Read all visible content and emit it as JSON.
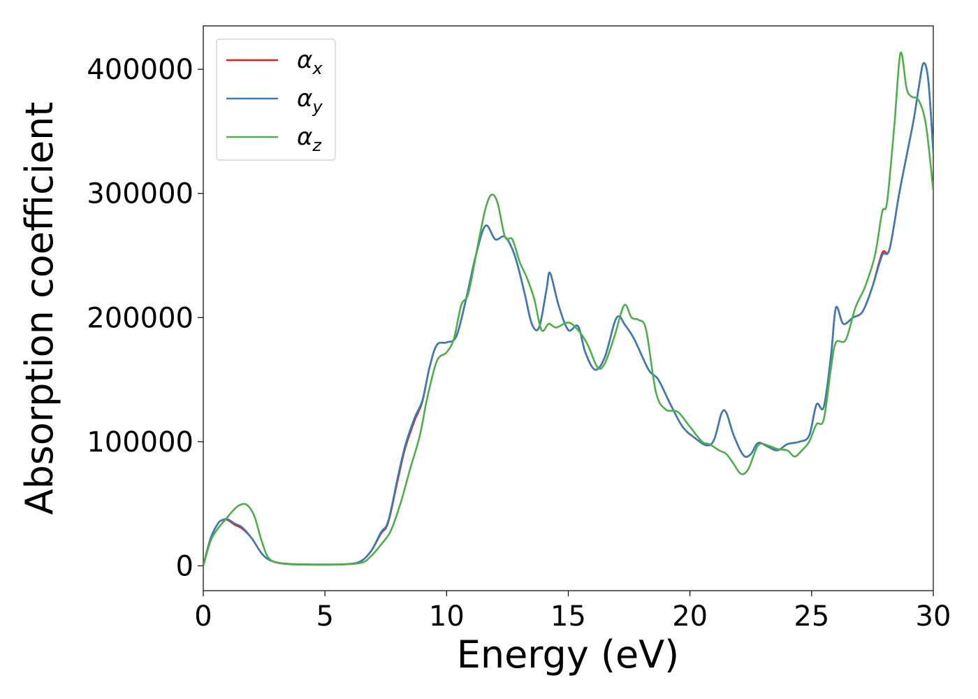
{
  "chart_data": {
    "type": "line",
    "title": "",
    "xlabel": "Energy (eV)",
    "ylabel": "Absorption coefficient",
    "xlim": [
      0,
      30
    ],
    "ylim": [
      -20000,
      435000
    ],
    "xticks": [
      0,
      5,
      10,
      15,
      20,
      25,
      30
    ],
    "yticks": [
      0,
      100000,
      200000,
      300000,
      400000
    ],
    "grid": false,
    "legend_position": "top-left",
    "series": [
      {
        "name": "α",
        "subscript": "x",
        "color": "#e41a1c",
        "points": [
          [
            0,
            0
          ],
          [
            0.3,
            22000
          ],
          [
            0.6,
            34000
          ],
          [
            0.8,
            37000
          ],
          [
            1.0,
            37000
          ],
          [
            1.3,
            33000
          ],
          [
            1.6,
            30000
          ],
          [
            2.0,
            22000
          ],
          [
            2.4,
            10000
          ],
          [
            2.8,
            4000
          ],
          [
            3.5,
            1500
          ],
          [
            5,
            1000
          ],
          [
            6,
            1500
          ],
          [
            6.5,
            4000
          ],
          [
            6.9,
            12000
          ],
          [
            7.3,
            26000
          ],
          [
            7.6,
            35000
          ],
          [
            8.0,
            70000
          ],
          [
            8.3,
            95000
          ],
          [
            8.7,
            118000
          ],
          [
            9.0,
            132000
          ],
          [
            9.3,
            160000
          ],
          [
            9.6,
            178000
          ],
          [
            10.0,
            180000
          ],
          [
            10.4,
            185000
          ],
          [
            10.8,
            215000
          ],
          [
            11.2,
            250000
          ],
          [
            11.6,
            274000
          ],
          [
            12.0,
            263000
          ],
          [
            12.4,
            265000
          ],
          [
            12.8,
            250000
          ],
          [
            13.2,
            220000
          ],
          [
            13.5,
            195000
          ],
          [
            13.8,
            192000
          ],
          [
            14.1,
            222000
          ],
          [
            14.25,
            236000
          ],
          [
            14.6,
            210000
          ],
          [
            15.0,
            190000
          ],
          [
            15.4,
            193000
          ],
          [
            15.7,
            172000
          ],
          [
            16.1,
            158000
          ],
          [
            16.5,
            168000
          ],
          [
            16.9,
            196000
          ],
          [
            17.1,
            201000
          ],
          [
            17.3,
            195000
          ],
          [
            17.7,
            183000
          ],
          [
            18.3,
            158000
          ],
          [
            18.7,
            150000
          ],
          [
            19.2,
            130000
          ],
          [
            19.7,
            112000
          ],
          [
            20.2,
            103000
          ],
          [
            20.7,
            97000
          ],
          [
            21.0,
            102000
          ],
          [
            21.3,
            123000
          ],
          [
            21.5,
            123000
          ],
          [
            21.8,
            105000
          ],
          [
            22.2,
            89000
          ],
          [
            22.5,
            90000
          ],
          [
            22.8,
            99000
          ],
          [
            23.2,
            96000
          ],
          [
            23.6,
            93000
          ],
          [
            24.0,
            98000
          ],
          [
            24.5,
            100000
          ],
          [
            24.9,
            105000
          ],
          [
            25.2,
            130000
          ],
          [
            25.5,
            128000
          ],
          [
            25.8,
            170000
          ],
          [
            26.0,
            208000
          ],
          [
            26.3,
            195000
          ],
          [
            26.7,
            200000
          ],
          [
            27.1,
            205000
          ],
          [
            27.5,
            225000
          ],
          [
            27.9,
            252000
          ],
          [
            28.2,
            255000
          ],
          [
            28.6,
            300000
          ],
          [
            28.9,
            330000
          ],
          [
            29.2,
            360000
          ],
          [
            29.4,
            385000
          ],
          [
            29.6,
            405000
          ],
          [
            29.8,
            390000
          ],
          [
            30.0,
            333000
          ]
        ]
      },
      {
        "name": "α",
        "subscript": "y",
        "color": "#377eb8",
        "points": [
          [
            0,
            0
          ],
          [
            0.3,
            22000
          ],
          [
            0.6,
            34000
          ],
          [
            0.8,
            37000
          ],
          [
            1.0,
            37500
          ],
          [
            1.3,
            34000
          ],
          [
            1.6,
            31000
          ],
          [
            2.0,
            22000
          ],
          [
            2.4,
            10000
          ],
          [
            2.8,
            4000
          ],
          [
            3.5,
            1500
          ],
          [
            5,
            1000
          ],
          [
            6,
            1500
          ],
          [
            6.5,
            4000
          ],
          [
            6.9,
            12000
          ],
          [
            7.3,
            27000
          ],
          [
            7.6,
            36000
          ],
          [
            8.0,
            72000
          ],
          [
            8.3,
            97000
          ],
          [
            8.7,
            120000
          ],
          [
            9.0,
            133000
          ],
          [
            9.3,
            160000
          ],
          [
            9.6,
            178000
          ],
          [
            10.0,
            180000
          ],
          [
            10.4,
            185000
          ],
          [
            10.8,
            215000
          ],
          [
            11.2,
            250000
          ],
          [
            11.6,
            274000
          ],
          [
            12.0,
            263000
          ],
          [
            12.4,
            265000
          ],
          [
            12.8,
            250000
          ],
          [
            13.2,
            220000
          ],
          [
            13.5,
            195000
          ],
          [
            13.8,
            192000
          ],
          [
            14.1,
            222000
          ],
          [
            14.25,
            236000
          ],
          [
            14.6,
            210000
          ],
          [
            15.0,
            190000
          ],
          [
            15.4,
            193000
          ],
          [
            15.7,
            172000
          ],
          [
            16.1,
            158000
          ],
          [
            16.5,
            168000
          ],
          [
            16.9,
            196000
          ],
          [
            17.1,
            201000
          ],
          [
            17.3,
            195000
          ],
          [
            17.7,
            183000
          ],
          [
            18.3,
            158000
          ],
          [
            18.7,
            150000
          ],
          [
            19.2,
            130000
          ],
          [
            19.7,
            112000
          ],
          [
            20.2,
            103000
          ],
          [
            20.7,
            97000
          ],
          [
            21.0,
            102000
          ],
          [
            21.3,
            123000
          ],
          [
            21.5,
            123000
          ],
          [
            21.8,
            105000
          ],
          [
            22.2,
            89000
          ],
          [
            22.5,
            90000
          ],
          [
            22.8,
            99000
          ],
          [
            23.2,
            96000
          ],
          [
            23.6,
            93000
          ],
          [
            24.0,
            98000
          ],
          [
            24.5,
            100000
          ],
          [
            24.9,
            105000
          ],
          [
            25.2,
            130000
          ],
          [
            25.5,
            128000
          ],
          [
            25.8,
            170000
          ],
          [
            26.0,
            208000
          ],
          [
            26.3,
            195000
          ],
          [
            26.7,
            200000
          ],
          [
            27.1,
            205000
          ],
          [
            27.5,
            225000
          ],
          [
            27.9,
            250000
          ],
          [
            28.2,
            255000
          ],
          [
            28.6,
            300000
          ],
          [
            28.9,
            330000
          ],
          [
            29.2,
            360000
          ],
          [
            29.4,
            385000
          ],
          [
            29.6,
            405000
          ],
          [
            29.8,
            390000
          ],
          [
            30.0,
            333000
          ]
        ]
      },
      {
        "name": "α",
        "subscript": "z",
        "color": "#4daf4a",
        "points": [
          [
            0,
            0
          ],
          [
            0.3,
            20000
          ],
          [
            0.6,
            30000
          ],
          [
            0.9,
            37000
          ],
          [
            1.2,
            44000
          ],
          [
            1.5,
            49000
          ],
          [
            1.8,
            49000
          ],
          [
            2.1,
            40000
          ],
          [
            2.4,
            20000
          ],
          [
            2.7,
            6000
          ],
          [
            3.2,
            2000
          ],
          [
            4,
            1000
          ],
          [
            5.5,
            1000
          ],
          [
            6.5,
            2500
          ],
          [
            6.9,
            8000
          ],
          [
            7.3,
            17000
          ],
          [
            7.7,
            28000
          ],
          [
            8.1,
            50000
          ],
          [
            8.5,
            78000
          ],
          [
            8.9,
            105000
          ],
          [
            9.2,
            135000
          ],
          [
            9.6,
            165000
          ],
          [
            10.0,
            172000
          ],
          [
            10.3,
            183000
          ],
          [
            10.6,
            210000
          ],
          [
            10.9,
            220000
          ],
          [
            11.3,
            260000
          ],
          [
            11.6,
            288000
          ],
          [
            11.85,
            299000
          ],
          [
            12.1,
            292000
          ],
          [
            12.4,
            265000
          ],
          [
            12.7,
            263000
          ],
          [
            13.0,
            245000
          ],
          [
            13.3,
            232000
          ],
          [
            13.6,
            215000
          ],
          [
            13.9,
            190000
          ],
          [
            14.2,
            195000
          ],
          [
            14.5,
            192000
          ],
          [
            15.0,
            196000
          ],
          [
            15.4,
            190000
          ],
          [
            15.8,
            178000
          ],
          [
            16.2,
            160000
          ],
          [
            16.5,
            163000
          ],
          [
            16.9,
            185000
          ],
          [
            17.3,
            210000
          ],
          [
            17.6,
            200000
          ],
          [
            17.9,
            198000
          ],
          [
            18.2,
            190000
          ],
          [
            18.6,
            140000
          ],
          [
            19.0,
            126000
          ],
          [
            19.5,
            124000
          ],
          [
            20.0,
            112000
          ],
          [
            20.5,
            100000
          ],
          [
            20.8,
            98000
          ],
          [
            21.2,
            93000
          ],
          [
            21.5,
            90000
          ],
          [
            21.8,
            82000
          ],
          [
            22.1,
            74000
          ],
          [
            22.4,
            78000
          ],
          [
            22.8,
            97000
          ],
          [
            23.2,
            97000
          ],
          [
            23.6,
            94000
          ],
          [
            24.0,
            93000
          ],
          [
            24.3,
            88000
          ],
          [
            24.6,
            93000
          ],
          [
            24.9,
            100000
          ],
          [
            25.2,
            114000
          ],
          [
            25.5,
            118000
          ],
          [
            25.8,
            160000
          ],
          [
            26.0,
            180000
          ],
          [
            26.4,
            182000
          ],
          [
            26.8,
            208000
          ],
          [
            27.2,
            225000
          ],
          [
            27.6,
            250000
          ],
          [
            27.9,
            285000
          ],
          [
            28.1,
            293000
          ],
          [
            28.4,
            355000
          ],
          [
            28.65,
            413000
          ],
          [
            28.9,
            385000
          ],
          [
            29.1,
            378000
          ],
          [
            29.4,
            375000
          ],
          [
            29.7,
            355000
          ],
          [
            30.0,
            302000
          ]
        ]
      }
    ]
  }
}
